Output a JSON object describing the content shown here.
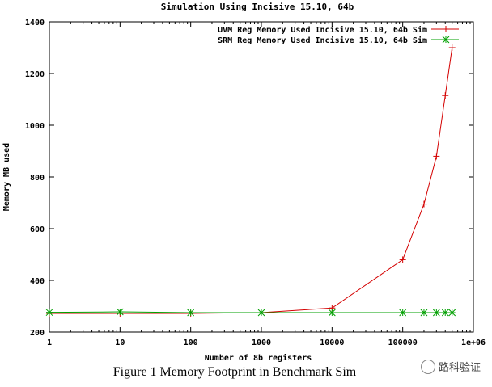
{
  "chart_data": {
    "type": "line",
    "title": "Simulation Using Incisive 15.10, 64b",
    "xlabel": "Number of 8b  registers",
    "ylabel": "Memory MB used",
    "xscale": "log",
    "xlim": [
      1,
      1000000
    ],
    "ylim": [
      200,
      1400
    ],
    "grid": false,
    "legend_position": "top-right",
    "x_ticks": [
      "1",
      "10",
      "100",
      "1000",
      "10000",
      "100000",
      "1e+06"
    ],
    "y_ticks": [
      "200",
      "400",
      "600",
      "800",
      "1000",
      "1200",
      "1400"
    ],
    "series": [
      {
        "name": "UVM Reg Memory Used Incisive 15.10, 64b Sim",
        "color": "#d40000",
        "marker": "plus",
        "x": [
          1,
          10,
          100,
          1000,
          10000,
          100000,
          200000,
          300000,
          400000,
          500000
        ],
        "y": [
          272,
          272,
          272,
          275,
          293,
          480,
          695,
          880,
          1115,
          1300
        ]
      },
      {
        "name": "SRM Reg Memory Used Incisive 15.10, 64b Sim",
        "color": "#00a000",
        "marker": "star",
        "x": [
          1,
          10,
          100,
          1000,
          10000,
          100000,
          200000,
          300000,
          400000,
          500000
        ],
        "y": [
          276,
          278,
          275,
          275,
          275,
          275,
          275,
          275,
          275,
          275
        ]
      }
    ]
  },
  "caption": "Figure 1 Memory Footprint in Benchmark Sim",
  "watermark": "路科验证"
}
